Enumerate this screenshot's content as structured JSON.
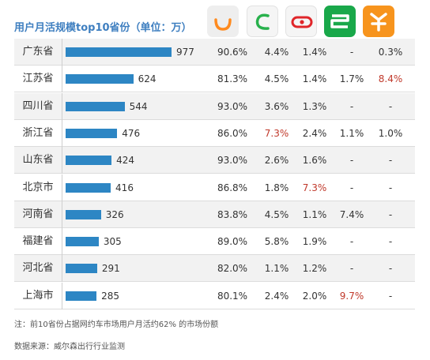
{
  "title": "用户月活规模top10省份（单位：万）",
  "app_icons": [
    {
      "icon": "didi-icon",
      "color": "#ff8a1e",
      "bg": "#eeeeee"
    },
    {
      "icon": "caocao-icon",
      "color": "#28b14c",
      "bg": "#f5f5f5"
    },
    {
      "icon": "car-icon",
      "color": "#e0262a",
      "bg": "#f5f5f5"
    },
    {
      "icon": "shouqi-icon",
      "color": "#ffffff",
      "bg": "#19a84a"
    },
    {
      "icon": "shenzhou-icon",
      "color": "#ffffff",
      "bg": "#f7941d"
    }
  ],
  "chart_data": {
    "type": "table",
    "categories": [
      "广东省",
      "江苏省",
      "四川省",
      "浙江省",
      "山东省",
      "北京市",
      "河南省",
      "福建省",
      "河北省",
      "上海市"
    ],
    "values": [
      977,
      624,
      544,
      476,
      424,
      416,
      326,
      305,
      291,
      285
    ],
    "xlim": [
      0,
      977
    ],
    "share_columns": [
      [
        "90.6%",
        "81.3%",
        "93.0%",
        "86.0%",
        "93.0%",
        "86.8%",
        "83.8%",
        "89.0%",
        "82.0%",
        "80.1%"
      ],
      [
        "4.4%",
        "4.5%",
        "3.6%",
        "7.3%",
        "2.6%",
        "1.8%",
        "4.5%",
        "5.8%",
        "1.1%",
        "2.4%"
      ],
      [
        "1.4%",
        "1.4%",
        "1.3%",
        "2.4%",
        "1.6%",
        "7.3%",
        "1.1%",
        "1.9%",
        "1.2%",
        "2.0%"
      ],
      [
        "-",
        "1.7%",
        "-",
        "1.1%",
        "-",
        "-",
        "7.4%",
        "-",
        "-",
        "9.7%"
      ],
      [
        "0.3%",
        "8.4%",
        "-",
        "1.0%",
        "-",
        "-",
        "-",
        "-",
        "-",
        "-"
      ]
    ],
    "highlights": [
      [
        1,
        4
      ],
      [
        3,
        1
      ],
      [
        5,
        2
      ],
      [
        9,
        3
      ]
    ],
    "highlight_color": "#c0392b",
    "bar_color": "#2d86c4"
  },
  "footnotes": {
    "note": "注：前10省份占据网约车市场用户月活约62% 的市场份额",
    "source": "数据来源：威尔森出行行业监测"
  }
}
